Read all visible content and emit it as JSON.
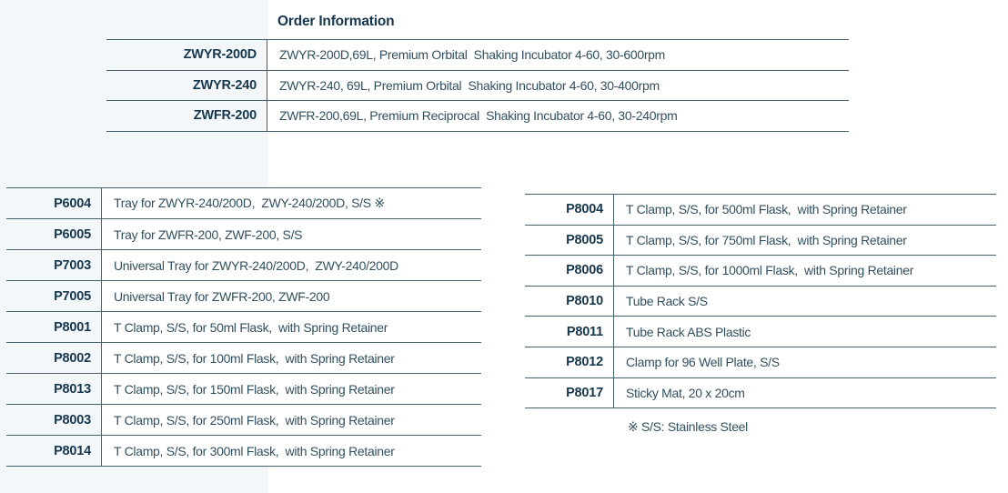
{
  "colors": {
    "page_background": "#ffffff",
    "accent_band": "#f3f7fa",
    "rule_line": "#46616f",
    "code_text": "#17374e",
    "description_text": "#31505f"
  },
  "order_table": {
    "title": "Order Information",
    "rows": [
      {
        "code": "ZWYR-200D",
        "desc": "ZWYR-200D,69L, Premium Orbital  Shaking Incubator 4-60, 30-600rpm"
      },
      {
        "code": "ZWYR-240",
        "desc": "ZWYR-240, 69L, Premium Orbital  Shaking Incubator 4-60, 30-400rpm"
      },
      {
        "code": "ZWFR-200",
        "desc": "ZWFR-200,69L, Premium Reciprocal  Shaking Incubator 4-60, 30-240rpm"
      }
    ]
  },
  "accessories_left": {
    "rows": [
      {
        "code": "P6004",
        "desc": "Tray for ZWYR-240/200D,  ZWY-240/200D, S/S ※"
      },
      {
        "code": "P6005",
        "desc": "Tray for ZWFR-200, ZWF-200, S/S"
      },
      {
        "code": "P7003",
        "desc": "Universal Tray for ZWYR-240/200D,  ZWY-240/200D"
      },
      {
        "code": "P7005",
        "desc": "Universal Tray for ZWFR-200, ZWF-200"
      },
      {
        "code": "P8001",
        "desc": "T Clamp, S/S, for 50ml Flask,  with Spring Retainer"
      },
      {
        "code": "P8002",
        "desc": "T Clamp, S/S, for 100ml Flask,  with Spring Retainer"
      },
      {
        "code": "P8013",
        "desc": "T Clamp, S/S, for 150ml Flask,  with Spring Retainer"
      },
      {
        "code": "P8003",
        "desc": "T Clamp, S/S, for 250ml Flask,  with Spring Retainer"
      },
      {
        "code": "P8014",
        "desc": "T Clamp, S/S, for 300ml Flask,  with Spring Retainer"
      }
    ]
  },
  "accessories_right": {
    "rows": [
      {
        "code": "P8004",
        "desc": "T Clamp, S/S, for 500ml Flask,  with Spring Retainer"
      },
      {
        "code": "P8005",
        "desc": "T Clamp, S/S, for 750ml Flask,  with Spring Retainer"
      },
      {
        "code": "P8006",
        "desc": "T Clamp, S/S, for 1000ml Flask,  with Spring Retainer"
      },
      {
        "code": "P8010",
        "desc": "Tube Rack S/S"
      },
      {
        "code": "P8011",
        "desc": "Tube Rack ABS Plastic"
      },
      {
        "code": "P8012",
        "desc": "Clamp for 96 Well Plate, S/S"
      },
      {
        "code": "P8017",
        "desc": "Sticky Mat, 20 x 20cm"
      }
    ],
    "footnote": "※ S/S: Stainless Steel"
  }
}
